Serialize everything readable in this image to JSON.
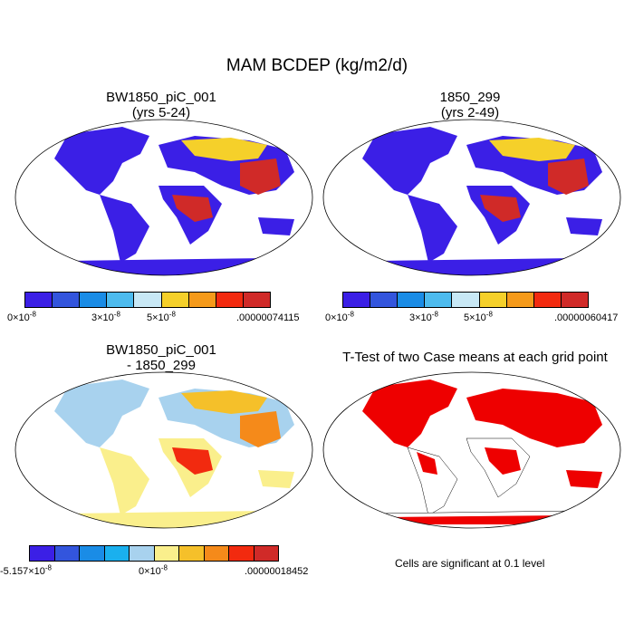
{
  "title": "MAM BCDEP (kg/m2/d)",
  "panels": {
    "top_left": {
      "title_line1": "BW1850_piC_001",
      "title_line2": "(yrs 5-24)",
      "colorbar_labels": {
        "min": "0×10",
        "min_exp": "-8",
        "mid1": "3×10",
        "mid1_exp": "-8",
        "mid2": "5×10",
        "mid2_exp": "-8",
        "max": ".00000074115"
      }
    },
    "top_right": {
      "title_line1": "1850_299",
      "title_line2": "(yrs 2-49)",
      "colorbar_labels": {
        "min": "0×10",
        "min_exp": "-8",
        "mid1": "3×10",
        "mid1_exp": "-8",
        "mid2": "5×10",
        "mid2_exp": "-8",
        "max": ".00000060417"
      }
    },
    "bottom_left": {
      "title_line1": "BW1850_piC_001",
      "title_line2": "- 1850_299",
      "colorbar_labels": {
        "min": "-5.157×10",
        "min_exp": "-8",
        "mid": "0×10",
        "mid_exp": "-8",
        "max": ".00000018452"
      }
    },
    "bottom_right": {
      "title": "T-Test of two Case means at each grid point",
      "note": "Cells are significant at 0.1 level"
    }
  },
  "colors": {
    "abs_scale": [
      "#3b1fe6",
      "#3355dd",
      "#1a8ce6",
      "#4dbbee",
      "#c8e8f5",
      "#f5d02a",
      "#f59a1a",
      "#f22a0f",
      "#d02a28"
    ],
    "diff_scale": [
      "#3b1fe6",
      "#3355dd",
      "#1a8ce6",
      "#1ab0ee",
      "#a8d2ee",
      "#faef8c",
      "#f5c02a",
      "#f58a1a",
      "#f22a0f",
      "#d02a28"
    ],
    "significant": "#ee0000"
  }
}
